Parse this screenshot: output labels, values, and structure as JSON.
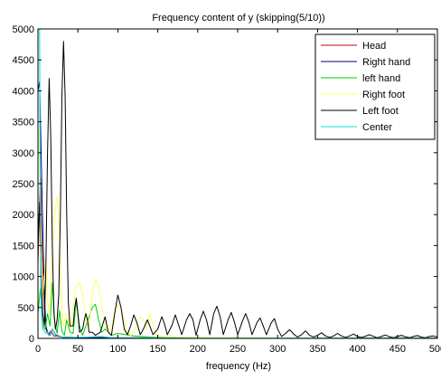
{
  "chart_data": {
    "type": "line",
    "title": "Frequency content of y (skipping(5/10))",
    "xlabel": "frequency (Hz)",
    "ylabel": "",
    "xlim": [
      0,
      500
    ],
    "ylim": [
      0,
      5000
    ],
    "x_ticks": [
      "0",
      "50",
      "100",
      "150",
      "200",
      "250",
      "300",
      "350",
      "400",
      "450",
      "500"
    ],
    "y_ticks": [
      "0",
      "500",
      "1000",
      "1500",
      "2000",
      "2500",
      "3000",
      "3500",
      "4000",
      "4500",
      "5000"
    ],
    "grid": false,
    "legend_position": "top-right",
    "series": [
      {
        "name": "Head",
        "color": "#cc0000",
        "points": [
          [
            0,
            1200
          ],
          [
            3,
            2600
          ],
          [
            5,
            1500
          ],
          [
            8,
            500
          ],
          [
            10,
            150
          ],
          [
            13,
            60
          ],
          [
            16,
            120
          ],
          [
            20,
            40
          ],
          [
            25,
            30
          ],
          [
            30,
            20
          ],
          [
            40,
            20
          ],
          [
            50,
            15
          ],
          [
            100,
            10
          ],
          [
            200,
            8
          ],
          [
            300,
            5
          ],
          [
            500,
            5
          ]
        ]
      },
      {
        "name": "Right hand",
        "color": "#000080",
        "points": [
          [
            0,
            4000
          ],
          [
            2,
            4150
          ],
          [
            4,
            3000
          ],
          [
            6,
            1800
          ],
          [
            8,
            700
          ],
          [
            10,
            200
          ],
          [
            12,
            100
          ],
          [
            15,
            50
          ],
          [
            18,
            150
          ],
          [
            22,
            60
          ],
          [
            26,
            40
          ],
          [
            30,
            20
          ],
          [
            40,
            15
          ],
          [
            60,
            10
          ],
          [
            100,
            8
          ],
          [
            200,
            5
          ],
          [
            500,
            5
          ]
        ]
      },
      {
        "name": "left hand",
        "color": "#00cc00",
        "points": [
          [
            0,
            400
          ],
          [
            3,
            800
          ],
          [
            6,
            200
          ],
          [
            9,
            150
          ],
          [
            12,
            400
          ],
          [
            15,
            200
          ],
          [
            18,
            900
          ],
          [
            21,
            250
          ],
          [
            24,
            80
          ],
          [
            27,
            450
          ],
          [
            30,
            120
          ],
          [
            33,
            50
          ],
          [
            36,
            300
          ],
          [
            40,
            100
          ],
          [
            44,
            80
          ],
          [
            48,
            600
          ],
          [
            52,
            200
          ],
          [
            56,
            50
          ],
          [
            60,
            200
          ],
          [
            64,
            350
          ],
          [
            68,
            500
          ],
          [
            72,
            550
          ],
          [
            76,
            300
          ],
          [
            80,
            100
          ],
          [
            84,
            150
          ],
          [
            88,
            100
          ],
          [
            92,
            50
          ],
          [
            100,
            80
          ],
          [
            120,
            40
          ],
          [
            140,
            20
          ],
          [
            160,
            10
          ],
          [
            200,
            8
          ],
          [
            300,
            5
          ],
          [
            500,
            5
          ]
        ]
      },
      {
        "name": "Right foot",
        "color": "#ffff66",
        "points": [
          [
            0,
            3500
          ],
          [
            2,
            2800
          ],
          [
            4,
            1500
          ],
          [
            6,
            700
          ],
          [
            8,
            1000
          ],
          [
            10,
            1300
          ],
          [
            12,
            600
          ],
          [
            14,
            400
          ],
          [
            16,
            900
          ],
          [
            18,
            1400
          ],
          [
            20,
            1800
          ],
          [
            22,
            2100
          ],
          [
            24,
            2300
          ],
          [
            26,
            2000
          ],
          [
            28,
            1200
          ],
          [
            30,
            500
          ],
          [
            32,
            200
          ],
          [
            35,
            400
          ],
          [
            38,
            300
          ],
          [
            40,
            150
          ],
          [
            44,
            500
          ],
          [
            48,
            850
          ],
          [
            52,
            900
          ],
          [
            56,
            700
          ],
          [
            60,
            300
          ],
          [
            64,
            200
          ],
          [
            68,
            700
          ],
          [
            72,
            950
          ],
          [
            76,
            850
          ],
          [
            80,
            500
          ],
          [
            84,
            200
          ],
          [
            88,
            100
          ],
          [
            92,
            150
          ],
          [
            96,
            450
          ],
          [
            100,
            550
          ],
          [
            104,
            500
          ],
          [
            108,
            300
          ],
          [
            112,
            100
          ],
          [
            116,
            50
          ],
          [
            120,
            100
          ],
          [
            124,
            250
          ],
          [
            128,
            350
          ],
          [
            132,
            300
          ],
          [
            136,
            150
          ],
          [
            140,
            400
          ],
          [
            144,
            200
          ],
          [
            148,
            60
          ],
          [
            155,
            30
          ],
          [
            165,
            40
          ],
          [
            175,
            20
          ],
          [
            200,
            15
          ],
          [
            250,
            10
          ],
          [
            300,
            8
          ],
          [
            400,
            5
          ],
          [
            500,
            5
          ]
        ]
      },
      {
        "name": "Left foot",
        "color": "#000000",
        "points": [
          [
            0,
            1500
          ],
          [
            2,
            2200
          ],
          [
            4,
            1000
          ],
          [
            6,
            400
          ],
          [
            8,
            200
          ],
          [
            10,
            1200
          ],
          [
            12,
            3000
          ],
          [
            14,
            4200
          ],
          [
            16,
            3300
          ],
          [
            18,
            1500
          ],
          [
            20,
            400
          ],
          [
            22,
            150
          ],
          [
            24,
            300
          ],
          [
            26,
            700
          ],
          [
            28,
            2000
          ],
          [
            30,
            3900
          ],
          [
            32,
            4800
          ],
          [
            34,
            3900
          ],
          [
            36,
            2000
          ],
          [
            38,
            600
          ],
          [
            40,
            200
          ],
          [
            44,
            200
          ],
          [
            46,
            500
          ],
          [
            48,
            650
          ],
          [
            50,
            400
          ],
          [
            52,
            100
          ],
          [
            56,
            150
          ],
          [
            58,
            300
          ],
          [
            60,
            400
          ],
          [
            62,
            300
          ],
          [
            64,
            100
          ],
          [
            68,
            100
          ],
          [
            72,
            50
          ],
          [
            78,
            100
          ],
          [
            84,
            350
          ],
          [
            88,
            100
          ],
          [
            92,
            50
          ],
          [
            96,
            400
          ],
          [
            100,
            700
          ],
          [
            104,
            500
          ],
          [
            108,
            150
          ],
          [
            112,
            60
          ],
          [
            116,
            200
          ],
          [
            120,
            380
          ],
          [
            124,
            250
          ],
          [
            128,
            60
          ],
          [
            132,
            150
          ],
          [
            137,
            300
          ],
          [
            140,
            200
          ],
          [
            144,
            60
          ],
          [
            150,
            150
          ],
          [
            155,
            350
          ],
          [
            158,
            250
          ],
          [
            162,
            60
          ],
          [
            168,
            220
          ],
          [
            172,
            380
          ],
          [
            176,
            220
          ],
          [
            180,
            60
          ],
          [
            186,
            300
          ],
          [
            190,
            400
          ],
          [
            194,
            300
          ],
          [
            198,
            50
          ],
          [
            203,
            300
          ],
          [
            207,
            440
          ],
          [
            211,
            300
          ],
          [
            215,
            60
          ],
          [
            220,
            400
          ],
          [
            224,
            520
          ],
          [
            228,
            350
          ],
          [
            232,
            60
          ],
          [
            238,
            300
          ],
          [
            242,
            420
          ],
          [
            246,
            260
          ],
          [
            250,
            60
          ],
          [
            256,
            280
          ],
          [
            260,
            400
          ],
          [
            264,
            260
          ],
          [
            268,
            60
          ],
          [
            274,
            250
          ],
          [
            278,
            330
          ],
          [
            282,
            200
          ],
          [
            286,
            60
          ],
          [
            292,
            250
          ],
          [
            296,
            320
          ],
          [
            300,
            150
          ],
          [
            305,
            30
          ],
          [
            310,
            80
          ],
          [
            315,
            140
          ],
          [
            320,
            70
          ],
          [
            325,
            20
          ],
          [
            330,
            60
          ],
          [
            335,
            120
          ],
          [
            340,
            50
          ],
          [
            345,
            20
          ],
          [
            350,
            50
          ],
          [
            355,
            90
          ],
          [
            360,
            40
          ],
          [
            365,
            15
          ],
          [
            370,
            40
          ],
          [
            375,
            80
          ],
          [
            380,
            40
          ],
          [
            385,
            15
          ],
          [
            390,
            40
          ],
          [
            395,
            70
          ],
          [
            400,
            30
          ],
          [
            405,
            15
          ],
          [
            410,
            35
          ],
          [
            415,
            60
          ],
          [
            420,
            30
          ],
          [
            425,
            10
          ],
          [
            430,
            30
          ],
          [
            435,
            55
          ],
          [
            440,
            25
          ],
          [
            445,
            10
          ],
          [
            450,
            30
          ],
          [
            455,
            50
          ],
          [
            460,
            25
          ],
          [
            465,
            10
          ],
          [
            470,
            30
          ],
          [
            475,
            45
          ],
          [
            480,
            20
          ],
          [
            485,
            10
          ],
          [
            490,
            30
          ],
          [
            495,
            40
          ],
          [
            500,
            20
          ]
        ]
      },
      {
        "name": "Center",
        "color": "#00dddd",
        "points": [
          [
            0,
            5000
          ],
          [
            1,
            5000
          ],
          [
            2,
            5000
          ],
          [
            3,
            1600
          ],
          [
            4,
            600
          ],
          [
            5,
            300
          ],
          [
            6,
            150
          ],
          [
            8,
            120
          ],
          [
            10,
            80
          ],
          [
            12,
            100
          ],
          [
            14,
            40
          ],
          [
            18,
            150
          ],
          [
            22,
            50
          ],
          [
            26,
            30
          ],
          [
            30,
            20
          ],
          [
            40,
            15
          ],
          [
            60,
            20
          ],
          [
            80,
            30
          ],
          [
            90,
            15
          ],
          [
            100,
            10
          ],
          [
            200,
            5
          ],
          [
            500,
            5
          ]
        ]
      }
    ]
  }
}
